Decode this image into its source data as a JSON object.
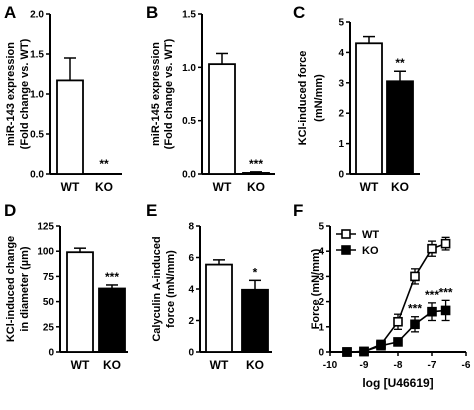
{
  "chart_data": [
    {
      "panel": "A",
      "type": "bar",
      "ylabel_lines": [
        "miR-143 expression",
        "(Fold change vs. WT)"
      ],
      "categories": [
        "WT",
        "KO"
      ],
      "values": [
        1.17,
        0.0
      ],
      "errors": [
        0.28,
        0.0
      ],
      "fills": [
        "#ffffff",
        "#000000"
      ],
      "ylim": [
        0,
        2.0
      ],
      "yticks": [
        "0.0",
        "0.5",
        "1.0",
        "1.5",
        "2.0"
      ],
      "annotations": [
        {
          "category": "KO",
          "text": "**"
        }
      ]
    },
    {
      "panel": "B",
      "type": "bar",
      "ylabel_lines": [
        "miR-145 expression",
        "(Fold change vs. WT)"
      ],
      "categories": [
        "WT",
        "KO"
      ],
      "values": [
        1.03,
        0.01
      ],
      "errors": [
        0.1,
        0.01
      ],
      "fills": [
        "#ffffff",
        "#000000"
      ],
      "ylim": [
        0,
        1.5
      ],
      "yticks": [
        "0.0",
        "0.5",
        "1.0",
        "1.5"
      ],
      "annotations": [
        {
          "category": "KO",
          "text": "***"
        }
      ]
    },
    {
      "panel": "C",
      "type": "bar",
      "ylabel_lines": [
        "KCl-induced force",
        "(mN/mm)"
      ],
      "categories": [
        "WT",
        "KO"
      ],
      "values": [
        4.3,
        3.05
      ],
      "errors": [
        0.22,
        0.33
      ],
      "fills": [
        "#ffffff",
        "#000000"
      ],
      "ylim": [
        0,
        5
      ],
      "yticks": [
        "0",
        "1",
        "2",
        "3",
        "4",
        "5"
      ],
      "annotations": [
        {
          "category": "KO",
          "text": "**"
        }
      ]
    },
    {
      "panel": "D",
      "type": "bar",
      "ylabel_lines": [
        "KCl-induced change",
        "in diameter (µm)"
      ],
      "categories": [
        "WT",
        "KO"
      ],
      "values": [
        99,
        63
      ],
      "errors": [
        4,
        3.5
      ],
      "fills": [
        "#ffffff",
        "#000000"
      ],
      "ylim": [
        0,
        125
      ],
      "yticks": [
        "0",
        "25",
        "50",
        "75",
        "100",
        "125"
      ],
      "annotations": [
        {
          "category": "KO",
          "text": "***"
        }
      ]
    },
    {
      "panel": "E",
      "type": "bar",
      "ylabel_lines": [
        "Calyculin A-induced",
        "force (mN/mm)"
      ],
      "categories": [
        "WT",
        "KO"
      ],
      "values": [
        5.55,
        3.95
      ],
      "errors": [
        0.3,
        0.6
      ],
      "fills": [
        "#ffffff",
        "#000000"
      ],
      "ylim": [
        0,
        8
      ],
      "yticks": [
        "0",
        "2",
        "4",
        "6",
        "8"
      ],
      "annotations": [
        {
          "category": "KO",
          "text": "*"
        }
      ]
    },
    {
      "panel": "F",
      "type": "line",
      "ylabel_lines": [
        "Force (mN/mm)"
      ],
      "xlabel": "log [U46619]",
      "xlim": [
        -10,
        -6
      ],
      "xticks": [
        "-10",
        "-9",
        "-8",
        "-7",
        "-6"
      ],
      "ylim": [
        0,
        5
      ],
      "yticks": [
        "0",
        "1",
        "2",
        "3",
        "4",
        "5"
      ],
      "series": [
        {
          "name": "WT",
          "marker": "open-square",
          "x": [
            -9.5,
            -9,
            -8.5,
            -8,
            -7.5,
            -7,
            -6.6
          ],
          "y": [
            0.0,
            0.02,
            0.3,
            1.2,
            3.0,
            4.1,
            4.3
          ],
          "err": [
            0.05,
            0.05,
            0.1,
            0.3,
            0.3,
            0.3,
            0.25
          ]
        },
        {
          "name": "KO",
          "marker": "filled-square",
          "x": [
            -9.5,
            -9,
            -8.5,
            -8,
            -7.5,
            -7,
            -6.6
          ],
          "y": [
            0.0,
            0.02,
            0.25,
            0.4,
            1.1,
            1.6,
            1.65
          ],
          "err": [
            0.05,
            0.05,
            0.1,
            0.15,
            0.3,
            0.35,
            0.4
          ]
        }
      ],
      "annotations": [
        {
          "x": -7.5,
          "text": "***"
        },
        {
          "x": -7,
          "text": "***"
        },
        {
          "x": -6.6,
          "text": "***"
        }
      ]
    }
  ]
}
